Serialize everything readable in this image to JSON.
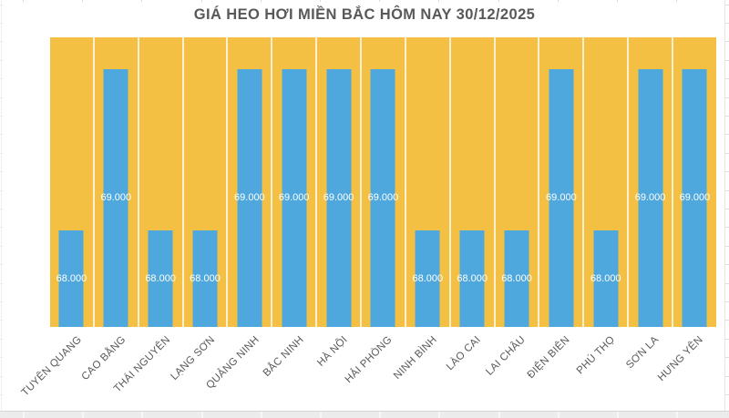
{
  "chart_data": {
    "type": "bar",
    "title": "GIÁ HEO HƠI MIỀN BẮC HÔM NAY 30/12/2025",
    "categories": [
      "TUYÊN QUANG",
      "CAO BẰNG",
      "THÁI NGUYÊN",
      "LẠNG SƠN",
      "QUẢNG NINH",
      "BẮC NINH",
      "HÀ NỘI",
      "HẢI PHÒNG",
      "NINH BÌNH",
      "LÀO CAI",
      "LAI CHÂU",
      "ĐIỆN BIÊN",
      "PHÚ THỌ",
      "SƠN LA",
      "HƯNG YÊN"
    ],
    "values": [
      68000,
      69000,
      68000,
      68000,
      69000,
      69000,
      69000,
      69000,
      68000,
      68000,
      68000,
      69000,
      68000,
      69000,
      69000
    ],
    "data_labels": [
      "68.000",
      "69.000",
      "68.000",
      "68.000",
      "69.000",
      "69.000",
      "69.000",
      "69.000",
      "68.000",
      "68.000",
      "68.000",
      "69.000",
      "68.000",
      "69.000",
      "69.000"
    ],
    "xlabel": "",
    "ylabel": "",
    "ylim": [
      67400,
      69200
    ],
    "grid": false,
    "legend": "none",
    "x_tick_rotation": -45,
    "colors": {
      "bar_fill": "#4EA8DE",
      "plot_background": "#F3C044",
      "category_separator": "rgba(255,255,255,0.75)",
      "data_label_text": "#FFFFFF",
      "title_text": "#595959",
      "axis_label_text": "#595959",
      "chart_background": "#FFFFFF",
      "sheet_gridline": "#D9D9D9"
    }
  }
}
